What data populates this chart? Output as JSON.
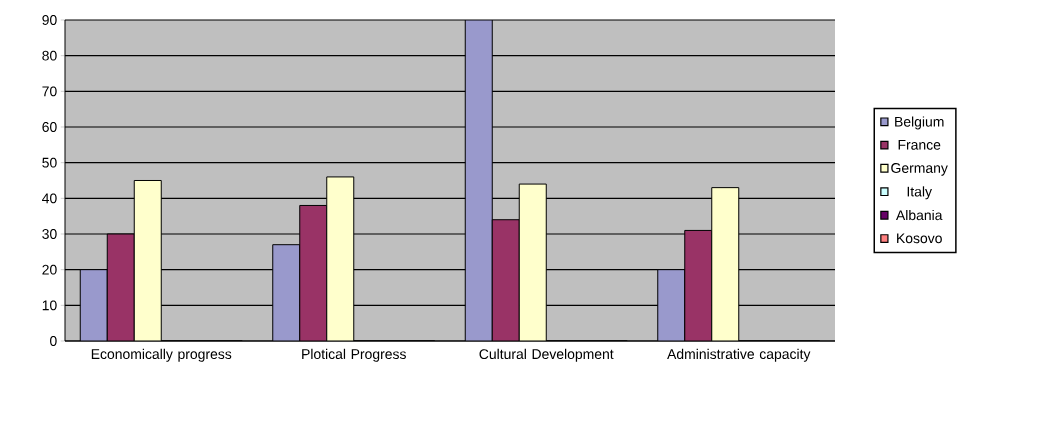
{
  "chart_data": {
    "type": "bar",
    "categories": [
      "Economically progress",
      "Plotical Progress",
      "Cultural Development",
      "Administrative capacity"
    ],
    "series": [
      {
        "name": "Belgium",
        "color": "#9999cc",
        "values": [
          20,
          27,
          90,
          20
        ]
      },
      {
        "name": "France",
        "color": "#993366",
        "values": [
          30,
          38,
          34,
          31
        ]
      },
      {
        "name": "Germany",
        "color": "#ffffcc",
        "values": [
          45,
          46,
          44,
          43
        ]
      },
      {
        "name": "Italy",
        "color": "#ccffff",
        "values": [
          0,
          0,
          0,
          0
        ]
      },
      {
        "name": "Albania",
        "color": "#660066",
        "values": [
          0,
          0,
          0,
          0
        ]
      },
      {
        "name": "Kosovo",
        "color": "#ff8080",
        "values": [
          0,
          0,
          0,
          0
        ]
      }
    ],
    "ylim": [
      0,
      90
    ],
    "yticks": [
      0,
      10,
      20,
      30,
      40,
      50,
      60,
      70,
      80,
      90
    ],
    "grid": "y",
    "legend": "right"
  }
}
